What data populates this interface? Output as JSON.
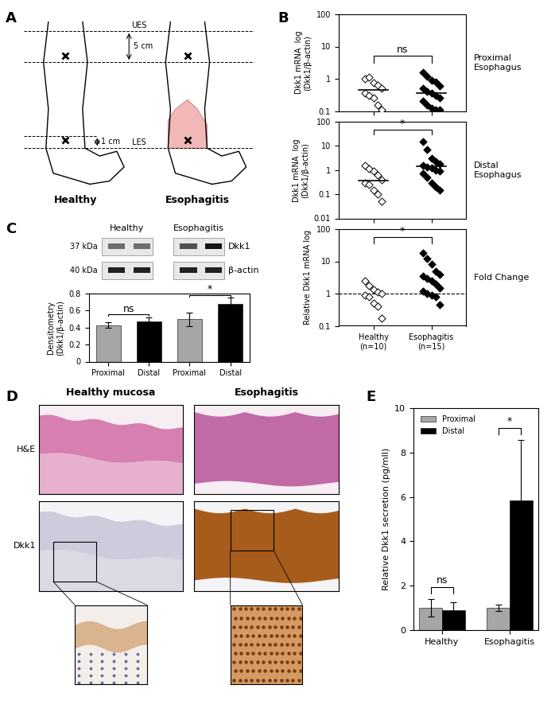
{
  "panel_labels": [
    "A",
    "B",
    "C",
    "D",
    "E"
  ],
  "diagram": {
    "upper_line": "UES",
    "lower_line": "LES",
    "upper_distance": "5 cm",
    "lower_distance": "1 cm",
    "columns": [
      "Healthy",
      "Esophagitis"
    ]
  },
  "blot": {
    "columns": [
      "Healthy",
      "Esophagitis"
    ],
    "rows": [
      {
        "size": "37 kDa",
        "protein": "Dkk1"
      },
      {
        "size": "40 kDa",
        "protein": "β-actin"
      }
    ]
  },
  "histology": {
    "columns": [
      "Healthy mucosa",
      "Esophagitis"
    ],
    "rows": [
      "H&E",
      "Dkk1"
    ]
  },
  "chart_data": [
    {
      "type": "scatter",
      "categories": [
        "Healthy\n(n=10)",
        "Esophagitis\n(n=15)"
      ],
      "side_label": "Proximal\nEsophagus",
      "y_label": "Dkk1 mRNA  log\n(Dkk1/β-actin)",
      "log": "y",
      "ylim": [
        0.1,
        100
      ],
      "yticks": [
        0.1,
        1,
        10,
        100
      ],
      "tick_labels": "y",
      "marker": "diamond",
      "colors": [
        "#ffffff",
        "#000000"
      ],
      "values": [
        [
          1.0,
          1.1,
          0.75,
          0.65,
          0.5,
          0.35,
          0.3,
          0.25,
          0.15,
          0.11
        ],
        [
          1.6,
          1.2,
          0.9,
          0.8,
          0.6,
          0.5,
          0.4,
          0.35,
          0.3,
          0.25,
          0.2,
          0.15,
          0.12,
          0.11,
          0.11
        ]
      ],
      "medians": [
        0.45,
        0.35
      ],
      "significance": [
        {
          "pair": [
            0,
            1
          ],
          "label": "ns"
        }
      ]
    },
    {
      "type": "scatter",
      "categories": [
        "Healthy\n(n=10)",
        "Esophagitis\n(n=15)"
      ],
      "side_label": "Distal\nEsophagus",
      "y_label": "Dkk1 mRNA  log\n(Dkk1/β-actin)",
      "log": "y",
      "ylim": [
        0.01,
        100
      ],
      "yticks": [
        0.01,
        0.1,
        1,
        10,
        100
      ],
      "tick_labels": "y",
      "marker": "diamond",
      "colors": [
        "#ffffff",
        "#000000"
      ],
      "values": [
        [
          1.6,
          1.1,
          0.9,
          0.6,
          0.4,
          0.3,
          0.25,
          0.15,
          0.1,
          0.05
        ],
        [
          15,
          7,
          3,
          2.2,
          1.8,
          1.5,
          1.3,
          1.2,
          1.0,
          0.9,
          0.7,
          0.5,
          0.3,
          0.2,
          0.15
        ]
      ],
      "medians": [
        0.38,
        1.4
      ],
      "significance": [
        {
          "pair": [
            0,
            1
          ],
          "label": "*"
        }
      ]
    },
    {
      "type": "scatter",
      "categories": [
        "Healthy\n(n=10)",
        "Esophagitis\n(n=15)"
      ],
      "side_label": "Fold Change",
      "y_label": "Relative Dkk1 mRNA log",
      "log": "y",
      "ylim": [
        0.1,
        100
      ],
      "yticks": [
        0.1,
        1,
        10,
        100
      ],
      "marker": "diamond",
      "colors": [
        "#ffffff",
        "#000000"
      ],
      "values": [
        [
          2.5,
          1.8,
          1.3,
          1.1,
          1.0,
          0.9,
          0.8,
          0.5,
          0.4,
          0.17
        ],
        [
          18,
          12,
          8,
          5,
          4,
          3.5,
          3,
          2.5,
          2,
          1.5,
          1.2,
          1.0,
          0.9,
          0.8,
          0.45
        ]
      ],
      "reference_line": 1,
      "significance": [
        {
          "pair": [
            0,
            1
          ],
          "label": "*"
        }
      ]
    },
    {
      "type": "bar",
      "categories": [
        "Proximal",
        "Distal",
        "Proximal",
        "Distal"
      ],
      "values": [
        0.43,
        0.47,
        0.5,
        0.68
      ],
      "errors": [
        0.03,
        0.05,
        0.08,
        0.07
      ],
      "colors": [
        "#a6a6a6",
        "#000000",
        "#a6a6a6",
        "#000000"
      ],
      "y_label": "Densitometry\n(Dkk1/β-actin)",
      "ylim": [
        0,
        0.8
      ],
      "yticks": [
        0,
        0.2,
        0.4,
        0.6,
        0.8
      ],
      "significance": [
        {
          "pair": [
            0,
            1
          ],
          "label": "ns"
        },
        {
          "pair": [
            2,
            3
          ],
          "label": "*"
        }
      ]
    },
    {
      "type": "bar",
      "categories": [
        "Healthy",
        "Esophagitis"
      ],
      "series": [
        {
          "name": "Proximal",
          "color": "#a6a6a6",
          "values": [
            1.0,
            1.0
          ],
          "errors": [
            0.4,
            0.15
          ]
        },
        {
          "name": "Distal",
          "color": "#000000",
          "values": [
            0.9,
            5.85
          ],
          "errors": [
            0.35,
            2.7
          ]
        }
      ],
      "y_label": "Relative Dkk1 secretion (pg/mll)",
      "ylim": [
        0,
        10
      ],
      "yticks": [
        0,
        2,
        4,
        6,
        8,
        10
      ],
      "legend": "upper left",
      "significance": [
        {
          "category": 0,
          "label": "ns"
        },
        {
          "category": 1,
          "label": "*"
        }
      ]
    }
  ]
}
